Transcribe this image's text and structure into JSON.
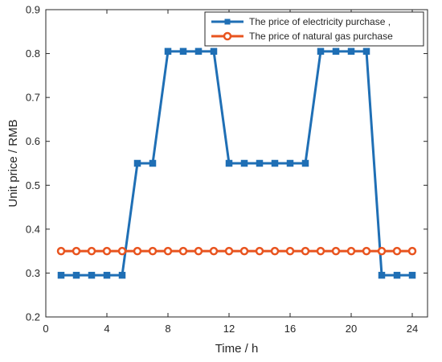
{
  "chart_data": {
    "type": "line",
    "title": "",
    "xlabel": "Time / h",
    "ylabel": "Unit price / RMB",
    "xlim": [
      0,
      25
    ],
    "ylim": [
      0.2,
      0.9
    ],
    "xticks": [
      0,
      4,
      8,
      12,
      16,
      20,
      24
    ],
    "yticks": [
      0.2,
      0.3,
      0.4,
      0.5,
      0.6,
      0.7,
      0.8,
      0.9
    ],
    "grid": false,
    "legend_position": "top-right",
    "x": [
      1,
      2,
      3,
      4,
      5,
      6,
      7,
      8,
      9,
      10,
      11,
      12,
      13,
      14,
      15,
      16,
      17,
      18,
      19,
      20,
      21,
      22,
      23,
      24
    ],
    "series": [
      {
        "name": "The price of electricity purchase ,",
        "color": "#1f6fb5",
        "marker": "square",
        "values": [
          0.295,
          0.295,
          0.295,
          0.295,
          0.295,
          0.55,
          0.55,
          0.805,
          0.805,
          0.805,
          0.805,
          0.55,
          0.55,
          0.55,
          0.55,
          0.55,
          0.55,
          0.805,
          0.805,
          0.805,
          0.805,
          0.295,
          0.295,
          0.295
        ]
      },
      {
        "name": "The price of natural gas purchase",
        "color": "#e8541f",
        "marker": "circle",
        "values": [
          0.35,
          0.35,
          0.35,
          0.35,
          0.35,
          0.35,
          0.35,
          0.35,
          0.35,
          0.35,
          0.35,
          0.35,
          0.35,
          0.35,
          0.35,
          0.35,
          0.35,
          0.35,
          0.35,
          0.35,
          0.35,
          0.35,
          0.35,
          0.35
        ]
      }
    ]
  }
}
